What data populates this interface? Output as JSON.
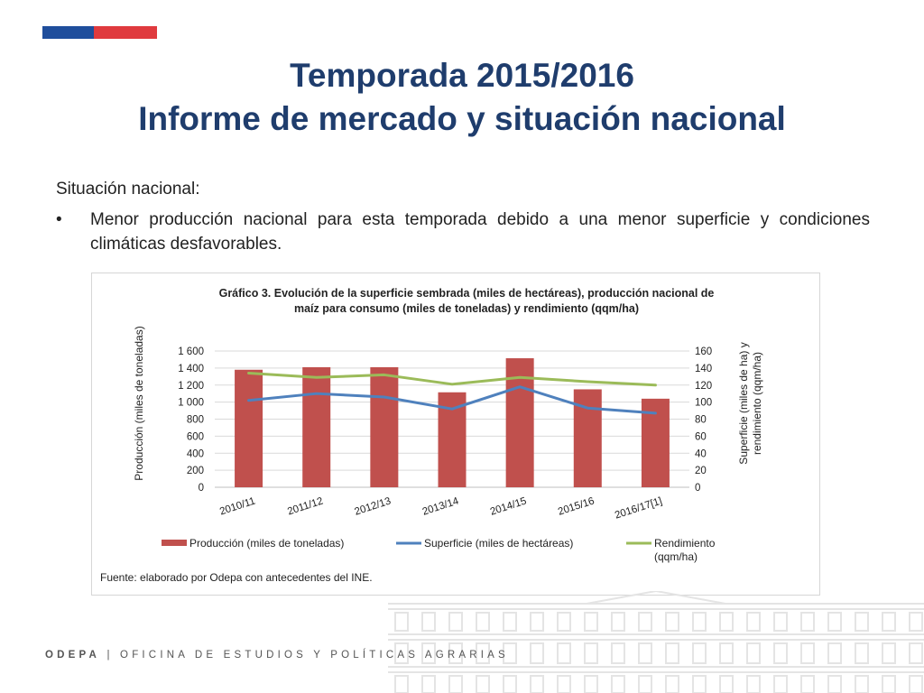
{
  "slide": {
    "title_line1": "Temporada 2015/2016",
    "title_line2": "Informe de mercado y situación nacional",
    "section_label": "Situación nacional:",
    "bullet_marker": "•",
    "bullet_text": "Menor producción nacional para esta temporada debido a una menor superficie y condiciones climáticas desfavorables.",
    "footer_org": "ODEPA",
    "footer_sep": "|",
    "footer_name": "OFICINA DE ESTUDIOS Y POLÍTICAS AGRARIAS"
  },
  "colors": {
    "title": "#1f3d6d",
    "flag_blue": "#1f4e9c",
    "flag_red": "#e03a3e",
    "bar": "#c0504d",
    "superficie": "#4f81bd",
    "rendimiento": "#9bbb59"
  },
  "chart_data": {
    "type": "bar",
    "title_line1": "Gráfico 3. Evolución de la superficie sembrada (miles de hectáreas), producción nacional de",
    "title_line2": "maíz para consumo (miles de toneladas) y rendimiento (qqm/ha)",
    "categories": [
      "2010/11",
      "2011/12",
      "2012/13",
      "2013/14",
      "2014/15",
      "2015/16",
      "2016/17[1]"
    ],
    "ylabel_left": "Producción (miles de toneladas)",
    "ylabel_right_line1": "Superficie (miles de ha) y",
    "ylabel_right_line2": "rendimiento (qqm/ha)",
    "ylim_left": [
      0,
      1600
    ],
    "ylim_right": [
      0,
      160
    ],
    "yticks_left": [
      "0",
      "200",
      "400",
      "600",
      "800",
      "1 000",
      "1 200",
      "1 400",
      "1 600"
    ],
    "yticks_right": [
      "0",
      "20",
      "40",
      "60",
      "80",
      "100",
      "120",
      "140",
      "160"
    ],
    "grid": true,
    "legend_position": "bottom",
    "series": [
      {
        "name": "Producción (miles de toneladas)",
        "kind": "bar",
        "axis": "left",
        "values": [
          1380,
          1410,
          1410,
          1115,
          1515,
          1150,
          1040
        ]
      },
      {
        "name": "Superficie (miles de hectáreas)",
        "kind": "line",
        "axis": "right",
        "values": [
          102,
          110,
          106,
          92,
          118,
          93,
          87
        ]
      },
      {
        "name": "Rendimiento (qqm/ha)",
        "kind": "line",
        "axis": "right",
        "values": [
          134,
          129,
          132,
          121,
          129,
          124,
          120
        ]
      }
    ],
    "source": "Fuente: elaborado por Odepa con antecedentes del INE."
  }
}
